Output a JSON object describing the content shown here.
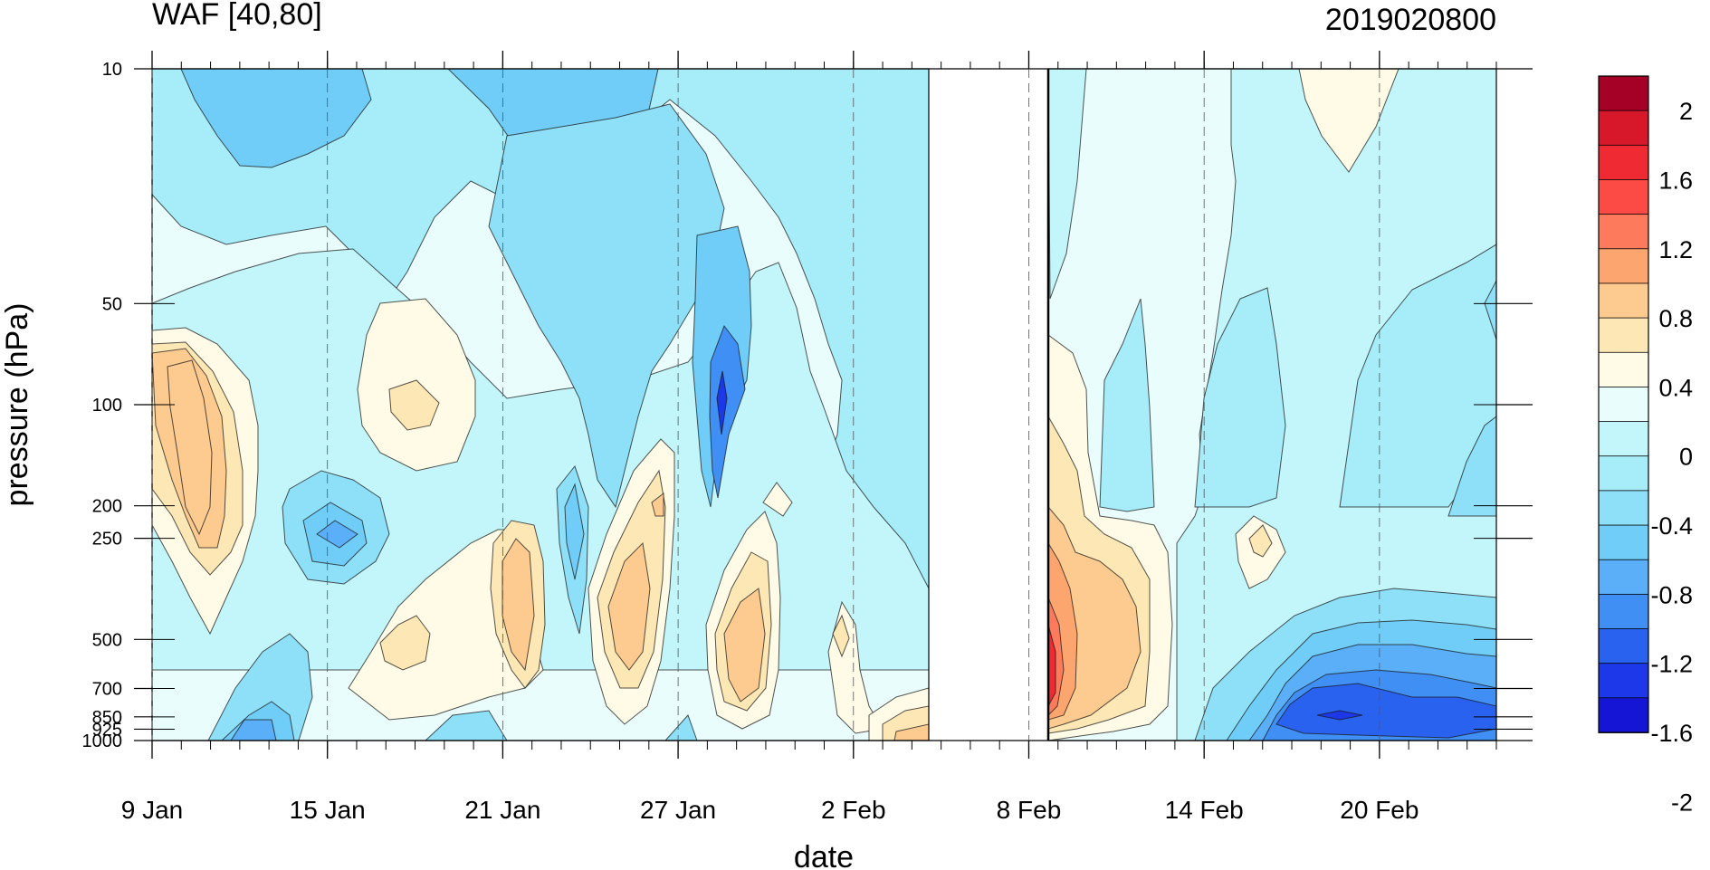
{
  "chart_data": {
    "type": "heatmap",
    "title_left": "WAF [40,80]",
    "title_right": "2019020800",
    "xlabel": "date",
    "ylabel": "pressure (hPa)",
    "y_scale": "log",
    "y_reversed": true,
    "ylim": [
      1000,
      10
    ],
    "y_ticks": [
      10,
      50,
      100,
      200,
      250,
      500,
      700,
      850,
      925,
      1000
    ],
    "y_tick_labels": [
      "10",
      "50",
      "100",
      "200",
      "250",
      "500",
      "700",
      "850",
      "925",
      "1000"
    ],
    "x_range": [
      "2019-01-09",
      "2019-02-24"
    ],
    "x_ticks": [
      "2019-01-09",
      "2019-01-15",
      "2019-01-21",
      "2019-01-27",
      "2019-02-02",
      "2019-02-08",
      "2019-02-14",
      "2019-02-20"
    ],
    "x_tick_labels": [
      "9 Jan",
      "15 Jan",
      "21 Jan",
      "27 Jan",
      "2 Feb",
      "8 Feb",
      "14 Feb",
      "20 Feb"
    ],
    "missing_data_range": [
      "2019-02-04",
      "2019-02-08"
    ],
    "colorbar": {
      "labels": [
        "2",
        "1.6",
        "1.2",
        "0.8",
        "0.4",
        "0",
        "-0.4",
        "-0.8",
        "-1.2",
        "-1.6",
        "-2"
      ],
      "colors": [
        "#a50026",
        "#d7172a",
        "#f02a33",
        "#fc4a45",
        "#fd7b5c",
        "#fda56e",
        "#fdca8f",
        "#fde8b5",
        "#fffbe6",
        "#e9fdfd",
        "#c3f6fa",
        "#a6ecf9",
        "#8ee0f8",
        "#70cdf8",
        "#5aaff8",
        "#3f8ff5",
        "#2a62f0",
        "#1d38e8",
        "#1515d6"
      ]
    },
    "fields": [
      {
        "x": [
          "2019-01-09",
          "2019-02-04"
        ],
        "p": [
          10,
          1000
        ],
        "value": -0.4
      },
      {
        "x": [
          "2019-01-10",
          "2019-01-16"
        ],
        "p": [
          10,
          35
        ],
        "value": -0.8
      },
      {
        "x": [
          "2019-01-19",
          "2019-01-26"
        ],
        "p": [
          10,
          40
        ],
        "value": -0.8
      },
      {
        "x": [
          "2019-01-09",
          "2019-01-13"
        ],
        "p": [
          70,
          400
        ],
        "value": 0.4
      },
      {
        "x": [
          "2019-01-16",
          "2019-01-20"
        ],
        "p": [
          55,
          150
        ],
        "value": 0.2
      },
      {
        "x": [
          "2019-01-14",
          "2019-01-18"
        ],
        "p": [
          220,
          300
        ],
        "value": -0.8
      },
      {
        "x": [
          "2019-01-27",
          "2019-01-29"
        ],
        "p": [
          60,
          200
        ],
        "value": -1.2
      },
      {
        "x": [
          "2019-01-23",
          "2019-01-26"
        ],
        "p": [
          200,
          700
        ],
        "value": 0.4
      },
      {
        "x": [
          "2019-01-27",
          "2019-01-30"
        ],
        "p": [
          300,
          850
        ],
        "value": 0.6
      },
      {
        "x": [
          "2019-01-20",
          "2019-01-22"
        ],
        "p": [
          260,
          700
        ],
        "value": 0.6
      },
      {
        "x": [
          "2019-02-08",
          "2019-02-10"
        ],
        "p": [
          120,
          1000
        ],
        "value": 0.8
      },
      {
        "x": [
          "2019-02-17",
          "2019-02-20"
        ],
        "p": [
          10,
          25
        ],
        "value": 0.2
      },
      {
        "x": [
          "2019-02-15",
          "2019-02-24"
        ],
        "p": [
          500,
          1000
        ],
        "value": -1.6
      }
    ]
  }
}
